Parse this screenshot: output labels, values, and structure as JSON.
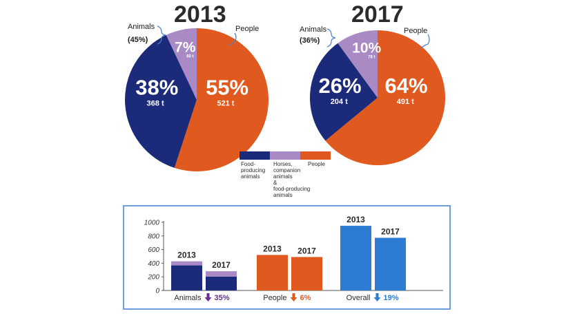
{
  "colors": {
    "food_producing_animals": "#1c2a7a",
    "horses_companion": "#a98ac4",
    "people": "#e0591f",
    "overall": "#2d7bd2",
    "panel_border": "#6d9fdc",
    "animals_arrow": "#6a2c91",
    "people_arrow": "#e0591f",
    "overall_arrow": "#2d7bd2"
  },
  "pies": [
    {
      "title": "2013",
      "callout_animals_label": "Animals",
      "callout_animals_pct": "(45%)",
      "callout_people_label": "People",
      "slices": [
        {
          "name": "Food-producing animals",
          "pct": 38,
          "pct_label": "38%",
          "tonnes_label": "368 t"
        },
        {
          "name": "Horses, companion animals & food-producing animals",
          "pct": 7,
          "pct_label": "7%",
          "tonnes_label": "60 t"
        },
        {
          "name": "People",
          "pct": 55,
          "pct_label": "55%",
          "tonnes_label": "521 t"
        }
      ]
    },
    {
      "title": "2017",
      "callout_animals_label": "Animals",
      "callout_animals_pct": "(36%)",
      "callout_people_label": "People",
      "slices": [
        {
          "name": "Food-producing animals",
          "pct": 26,
          "pct_label": "26%",
          "tonnes_label": "204 t"
        },
        {
          "name": "Horses, companion animals & food-producing animals",
          "pct": 10,
          "pct_label": "10%",
          "tonnes_label": "78 t"
        },
        {
          "name": "People",
          "pct": 64,
          "pct_label": "64%",
          "tonnes_label": "491 t"
        }
      ]
    }
  ],
  "legend": {
    "food": [
      "Food-",
      "producing",
      "animals"
    ],
    "horses": [
      "Horses,",
      "companion",
      "animals",
      "&",
      "food-producing",
      "animals"
    ],
    "people": [
      "People"
    ]
  },
  "chart_data": [
    {
      "type": "pie",
      "title": "2013",
      "labels": [
        "Food-producing animals",
        "Horses, companion animals & food-producing animals",
        "People"
      ],
      "values": [
        38,
        7,
        55
      ],
      "tonnes": [
        368,
        60,
        521
      ]
    },
    {
      "type": "pie",
      "title": "2017",
      "labels": [
        "Food-producing animals",
        "Horses, companion animals & food-producing animals",
        "People"
      ],
      "values": [
        26,
        10,
        64
      ],
      "tonnes": [
        204,
        78,
        491
      ]
    },
    {
      "type": "bar",
      "groups": [
        {
          "category": "Animals",
          "change": "35%",
          "direction": "down",
          "bars": [
            {
              "year": "2013",
              "stack": [
                {
                  "name": "Food-producing animals",
                  "value": 368
                },
                {
                  "name": "Horses, companion animals & food-producing animals",
                  "value": 60
                }
              ]
            },
            {
              "year": "2017",
              "stack": [
                {
                  "name": "Food-producing animals",
                  "value": 204
                },
                {
                  "name": "Horses, companion animals & food-producing animals",
                  "value": 78
                }
              ]
            }
          ]
        },
        {
          "category": "People",
          "change": "6%",
          "direction": "down",
          "bars": [
            {
              "year": "2013",
              "stack": [
                {
                  "name": "People",
                  "value": 521
                }
              ]
            },
            {
              "year": "2017",
              "stack": [
                {
                  "name": "People",
                  "value": 491
                }
              ]
            }
          ]
        },
        {
          "category": "Overall",
          "change": "19%",
          "direction": "down",
          "bars": [
            {
              "year": "2013",
              "stack": [
                {
                  "name": "Overall",
                  "value": 949
                }
              ]
            },
            {
              "year": "2017",
              "stack": [
                {
                  "name": "Overall",
                  "value": 773
                }
              ]
            }
          ]
        }
      ],
      "yticks": [
        "0",
        "200",
        "400",
        "600",
        "800",
        "1000"
      ],
      "ylim": [
        0,
        1000
      ],
      "grid": false
    }
  ]
}
